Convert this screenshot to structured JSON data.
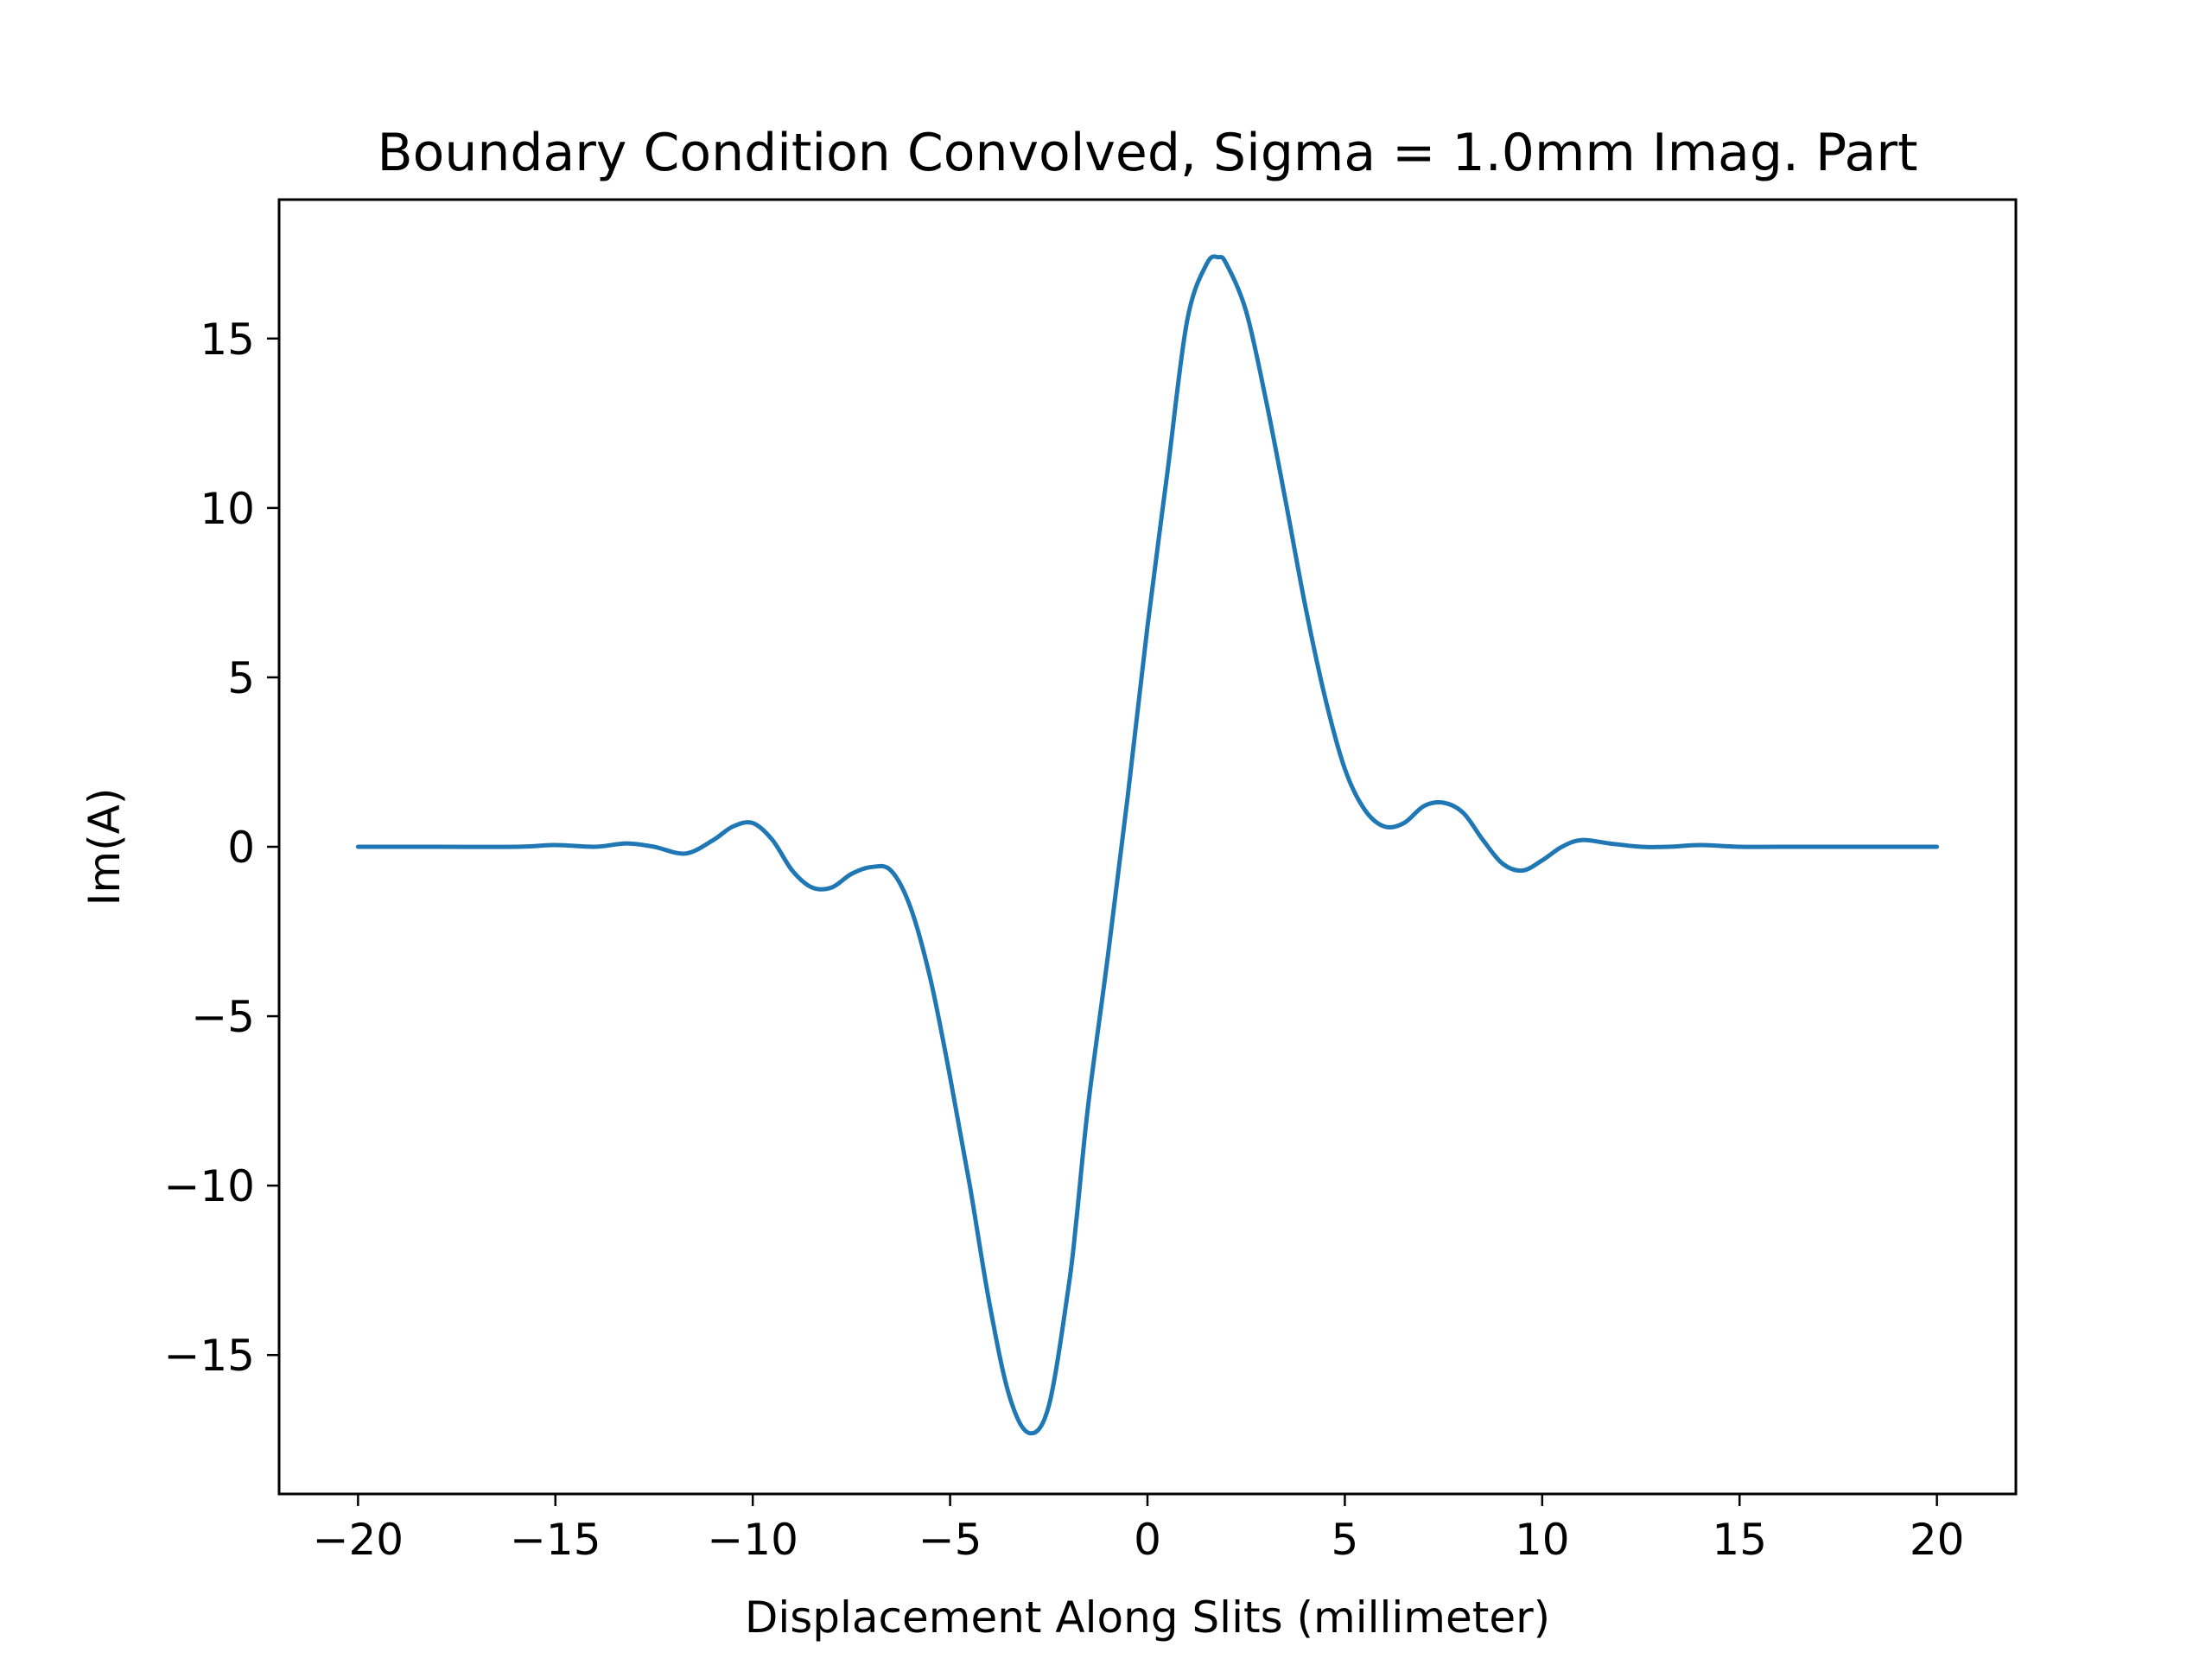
{
  "chart_data": {
    "type": "line",
    "title": "Boundary Condition Convolved, Sigma = 1.0mm Imag. Part",
    "xlabel": "Displacement Along Slits (millimeter)",
    "ylabel": "Im(A)",
    "xlim": [
      -22,
      22
    ],
    "ylim": [
      -19.1,
      19.1
    ],
    "xticks": [
      -20,
      -15,
      -10,
      -5,
      0,
      5,
      10,
      15,
      20
    ],
    "xtick_labels": [
      "−20",
      "−15",
      "−10",
      "−5",
      "0",
      "5",
      "10",
      "15",
      "20"
    ],
    "yticks": [
      -15,
      -10,
      -5,
      0,
      5,
      10,
      15
    ],
    "ytick_labels": [
      "−15",
      "−10",
      "−5",
      "0",
      "5",
      "10",
      "15"
    ],
    "grid": false,
    "legend": "none",
    "color": "#1f77b4",
    "series": [
      {
        "x": [
          -20,
          -18,
          -16,
          -15,
          -14,
          -13.2,
          -12.5,
          -11.7,
          -11,
          -10.5,
          -10,
          -9.5,
          -9,
          -8.5,
          -8,
          -7.5,
          -7,
          -6.5,
          -6,
          -5.5,
          -5,
          -4.5,
          -4,
          -3.5,
          -3,
          -2.5,
          -2,
          -1.8,
          -1.5,
          -1,
          -0.5,
          0,
          0.5,
          1,
          1.5,
          1.8,
          2,
          2.5,
          3,
          3.5,
          4,
          4.5,
          5,
          5.5,
          6,
          6.5,
          7,
          7.5,
          8,
          8.5,
          9,
          9.5,
          10,
          10.5,
          11,
          11.7,
          12.5,
          13.2,
          14,
          15,
          16,
          18,
          20
        ],
        "y": [
          0.0,
          0.0,
          0.0,
          0.05,
          0.0,
          0.1,
          0.0,
          -0.2,
          0.2,
          0.6,
          0.7,
          0.2,
          -0.7,
          -1.2,
          -1.2,
          -0.8,
          -0.6,
          -0.7,
          -1.8,
          -3.9,
          -6.8,
          -10.0,
          -13.5,
          -16.2,
          -17.3,
          -16.5,
          -13.0,
          -11.0,
          -7.6,
          -3.2,
          1.5,
          6.5,
          11.0,
          15.5,
          17.2,
          17.4,
          17.2,
          15.8,
          13.2,
          10.2,
          7.1,
          4.4,
          2.3,
          1.1,
          0.6,
          0.7,
          1.2,
          1.3,
          1.0,
          0.2,
          -0.5,
          -0.7,
          -0.4,
          0.0,
          0.2,
          0.1,
          0.0,
          0.0,
          0.05,
          0.0,
          0.0,
          0.0,
          0.0
        ]
      }
    ]
  }
}
